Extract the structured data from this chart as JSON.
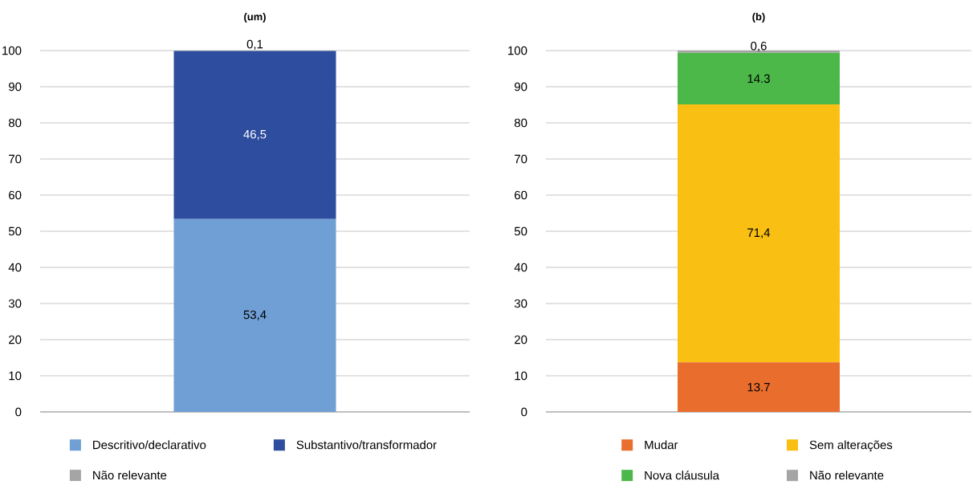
{
  "chart_data": [
    {
      "type": "bar",
      "title": "(um)",
      "categories": [
        null
      ],
      "stacked": true,
      "ylim": [
        0,
        100
      ],
      "yticks": [
        0,
        10,
        20,
        30,
        40,
        50,
        60,
        70,
        80,
        90,
        100
      ],
      "grid": "y",
      "legend": "bottom",
      "series": [
        {
          "name": "Descritivo/declarativo",
          "color": "#6f9fd4",
          "values": [
            53.4
          ],
          "value_labels": [
            "53,4"
          ]
        },
        {
          "name": "Substantivo/transformador",
          "color": "#2e4d9e",
          "values": [
            46.5
          ],
          "value_labels": [
            "46,5"
          ]
        },
        {
          "name": "Não relevante",
          "color": "#a5a5a5",
          "values": [
            0.1
          ],
          "value_labels": [
            "0,1"
          ]
        }
      ]
    },
    {
      "type": "bar",
      "title": "(b)",
      "categories": [
        null
      ],
      "stacked": true,
      "ylim": [
        0,
        100
      ],
      "yticks": [
        0,
        10,
        20,
        30,
        40,
        50,
        60,
        70,
        80,
        90,
        100
      ],
      "grid": "y",
      "legend": "bottom",
      "series": [
        {
          "name": "Mudar",
          "color": "#e96d2d",
          "values": [
            13.7
          ],
          "value_labels": [
            "13.7"
          ]
        },
        {
          "name": "Sem alterações",
          "color": "#f9c013",
          "values": [
            71.4
          ],
          "value_labels": [
            "71,4"
          ]
        },
        {
          "name": "Nova cláusula",
          "color": "#4db84a",
          "values": [
            14.3
          ],
          "value_labels": [
            "14.3"
          ]
        },
        {
          "name": "Não relevante",
          "color": "#a5a5a5",
          "values": [
            0.6
          ],
          "value_labels": [
            "0,6"
          ]
        }
      ]
    }
  ]
}
